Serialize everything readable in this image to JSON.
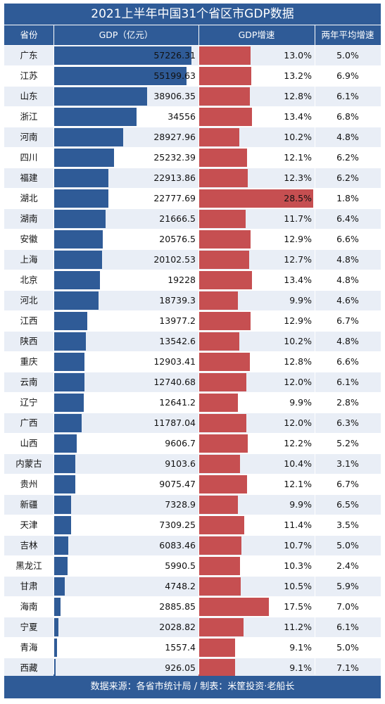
{
  "title": "2021上半年中国31个省区市GDP数据",
  "headers": {
    "province": "省份",
    "gdp": "GDP（亿元）",
    "rate": "GDP增速",
    "avg": "两年平均增速"
  },
  "footer": "数据来源：各省市统计局 / 制表：米筐投资·老船长",
  "colors": {
    "header_bg": "#2f5b97",
    "gdp_bar": "#2f5b97",
    "rate_bar": "#c64f51",
    "row_light": "#e9eef6",
    "row_white": "#ffffff"
  },
  "chart_data": {
    "type": "table",
    "columns": [
      "省份",
      "GDP（亿元）",
      "GDP增速",
      "两年平均增速"
    ],
    "rows": [
      {
        "province": "广东",
        "gdp": "57226.31",
        "rate": "13.0%",
        "avg": "5.0%"
      },
      {
        "province": "江苏",
        "gdp": "55199.63",
        "rate": "13.2%",
        "avg": "6.9%"
      },
      {
        "province": "山东",
        "gdp": "38906.35",
        "rate": "12.8%",
        "avg": "6.1%"
      },
      {
        "province": "浙江",
        "gdp": "34556",
        "rate": "13.4%",
        "avg": "6.8%"
      },
      {
        "province": "河南",
        "gdp": "28927.96",
        "rate": "10.2%",
        "avg": "4.8%"
      },
      {
        "province": "四川",
        "gdp": "25232.39",
        "rate": "12.1%",
        "avg": "6.2%"
      },
      {
        "province": "福建",
        "gdp": "22913.86",
        "rate": "12.3%",
        "avg": "6.2%"
      },
      {
        "province": "湖北",
        "gdp": "22777.69",
        "rate": "28.5%",
        "avg": "1.8%"
      },
      {
        "province": "湖南",
        "gdp": "21666.5",
        "rate": "11.7%",
        "avg": "6.4%"
      },
      {
        "province": "安徽",
        "gdp": "20576.5",
        "rate": "12.9%",
        "avg": "6.6%"
      },
      {
        "province": "上海",
        "gdp": "20102.53",
        "rate": "12.7%",
        "avg": "4.8%"
      },
      {
        "province": "北京",
        "gdp": "19228",
        "rate": "13.4%",
        "avg": "4.8%"
      },
      {
        "province": "河北",
        "gdp": "18739.3",
        "rate": "9.9%",
        "avg": "4.6%"
      },
      {
        "province": "江西",
        "gdp": "13977.2",
        "rate": "12.9%",
        "avg": "6.7%"
      },
      {
        "province": "陕西",
        "gdp": "13542.6",
        "rate": "10.2%",
        "avg": "4.8%"
      },
      {
        "province": "重庆",
        "gdp": "12903.41",
        "rate": "12.8%",
        "avg": "6.6%"
      },
      {
        "province": "云南",
        "gdp": "12740.68",
        "rate": "12.0%",
        "avg": "6.1%"
      },
      {
        "province": "辽宁",
        "gdp": "12641.2",
        "rate": "9.9%",
        "avg": "2.8%"
      },
      {
        "province": "广西",
        "gdp": "11787.04",
        "rate": "12.0%",
        "avg": "6.3%"
      },
      {
        "province": "山西",
        "gdp": "9606.7",
        "rate": "12.2%",
        "avg": "5.2%"
      },
      {
        "province": "内蒙古",
        "gdp": "9103.6",
        "rate": "10.4%",
        "avg": "3.1%"
      },
      {
        "province": "贵州",
        "gdp": "9075.47",
        "rate": "12.1%",
        "avg": "6.7%"
      },
      {
        "province": "新疆",
        "gdp": "7328.9",
        "rate": "9.9%",
        "avg": "6.5%"
      },
      {
        "province": "天津",
        "gdp": "7309.25",
        "rate": "11.4%",
        "avg": "3.5%"
      },
      {
        "province": "吉林",
        "gdp": "6083.46",
        "rate": "10.7%",
        "avg": "5.0%"
      },
      {
        "province": "黑龙江",
        "gdp": "5990.5",
        "rate": "10.3%",
        "avg": "2.4%"
      },
      {
        "province": "甘肃",
        "gdp": "4748.2",
        "rate": "10.5%",
        "avg": "5.9%"
      },
      {
        "province": "海南",
        "gdp": "2885.85",
        "rate": "17.5%",
        "avg": "7.0%"
      },
      {
        "province": "宁夏",
        "gdp": "2028.82",
        "rate": "11.2%",
        "avg": "6.1%"
      },
      {
        "province": "青海",
        "gdp": "1557.4",
        "rate": "9.1%",
        "avg": "5.0%"
      },
      {
        "province": "西藏",
        "gdp": "926.05",
        "rate": "9.1%",
        "avg": "7.1%"
      }
    ]
  }
}
